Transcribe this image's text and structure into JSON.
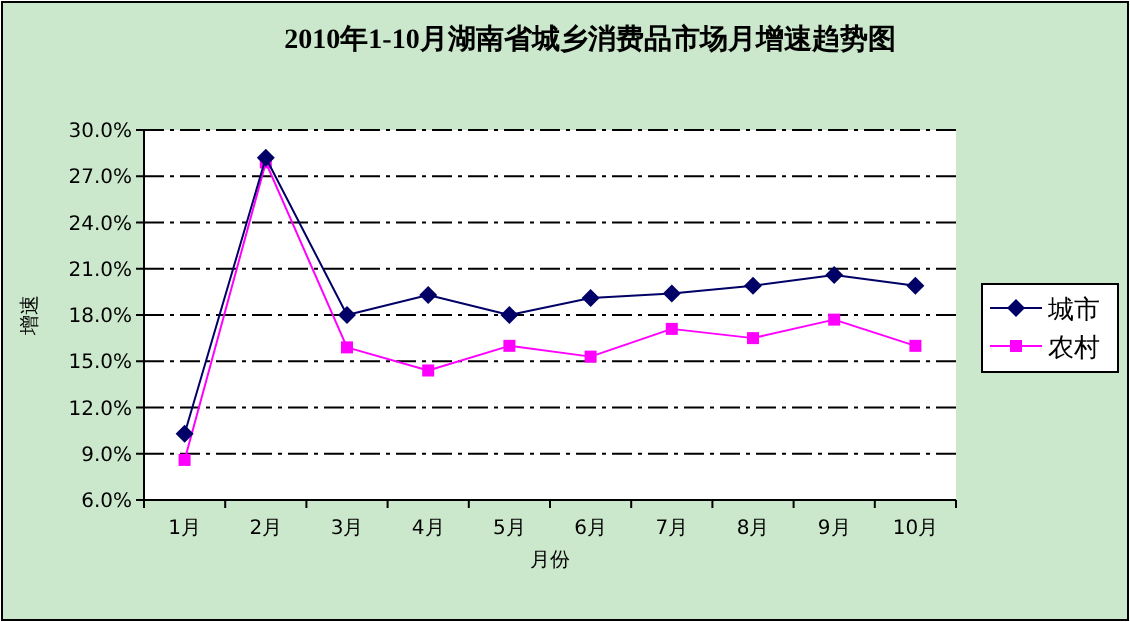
{
  "chart_data": {
    "type": "line",
    "title": "2010年1-10月湖南省城乡消费品市场月增速趋势图",
    "xlabel": "月份",
    "ylabel": "增速",
    "categories": [
      "1月",
      "2月",
      "3月",
      "4月",
      "5月",
      "6月",
      "7月",
      "8月",
      "9月",
      "10月"
    ],
    "series": [
      {
        "name": "城市",
        "color": "#000066",
        "marker": "diamond",
        "values": [
          10.3,
          28.2,
          18.0,
          19.3,
          18.0,
          19.1,
          19.4,
          19.9,
          20.6,
          19.9
        ]
      },
      {
        "name": "农村",
        "color": "#ff00ff",
        "marker": "square",
        "values": [
          8.6,
          27.9,
          15.9,
          14.4,
          16.0,
          15.3,
          17.1,
          16.5,
          17.7,
          16.0
        ]
      }
    ],
    "ylim": [
      6,
      30
    ],
    "yticks": [
      {
        "value": 6,
        "label": "6.0%"
      },
      {
        "value": 9,
        "label": "9.0%"
      },
      {
        "value": 12,
        "label": "12.0%"
      },
      {
        "value": 15,
        "label": "15.0%"
      },
      {
        "value": 18,
        "label": "18.0%"
      },
      {
        "value": 21,
        "label": "21.0%"
      },
      {
        "value": 24,
        "label": "24.0%"
      },
      {
        "value": 27,
        "label": "27.0%"
      },
      {
        "value": 30,
        "label": "30.0%"
      }
    ],
    "grid": "y",
    "line_style": "solid",
    "legend": "right"
  }
}
